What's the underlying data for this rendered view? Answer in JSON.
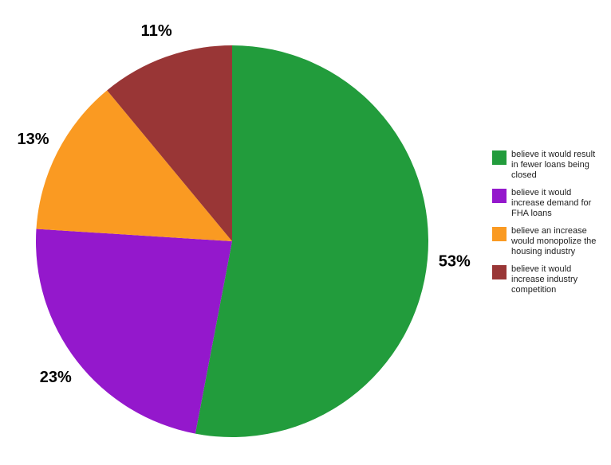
{
  "chart_data": {
    "type": "pie",
    "categories": [
      "believe it would result in fewer loans being closed",
      "believe it would increase demand for FHA loans",
      "believe an increase would monopolize the housing industry",
      "believe it would increase industry competition"
    ],
    "values": [
      53,
      23,
      13,
      11
    ],
    "value_labels": [
      "53%",
      "23%",
      "13%",
      "11%"
    ],
    "colors": [
      "#229c3c",
      "#9418cc",
      "#fa9a22",
      "#993636"
    ],
    "legend": "right"
  }
}
